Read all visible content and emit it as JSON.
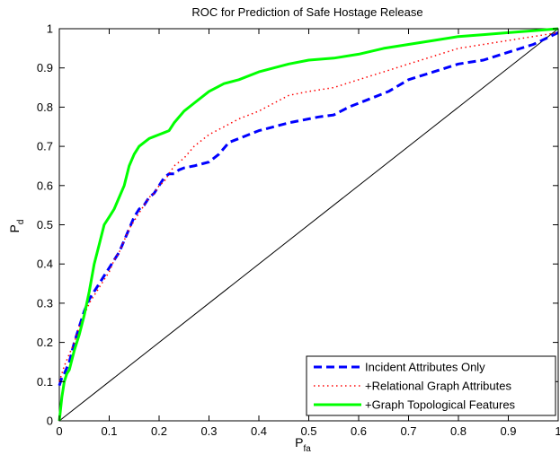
{
  "chart_data": {
    "type": "line",
    "title": "ROC for Prediction of Safe Hostage Release",
    "xlabel": {
      "main": "P",
      "sub": "fa"
    },
    "ylabel": {
      "main": "P",
      "sub": "d"
    },
    "xlim": [
      0,
      1
    ],
    "ylim": [
      0,
      1
    ],
    "xticks": [
      "0",
      "0.1",
      "0.2",
      "0.3",
      "0.4",
      "0.5",
      "0.6",
      "0.7",
      "0.8",
      "0.9",
      "1"
    ],
    "yticks": [
      "0",
      "0.1",
      "0.2",
      "0.3",
      "0.4",
      "0.5",
      "0.6",
      "0.7",
      "0.8",
      "0.9",
      "1"
    ],
    "grid": false,
    "legend_position": "bottom-right",
    "reference_line": {
      "x": [
        0,
        1
      ],
      "y": [
        0,
        1
      ],
      "color": "#000000"
    },
    "series": [
      {
        "name": "Incident Attributes Only",
        "color": "#0000ff",
        "style": "dashed",
        "x": [
          0,
          0.005,
          0.01,
          0.02,
          0.03,
          0.04,
          0.05,
          0.06,
          0.07,
          0.08,
          0.09,
          0.1,
          0.11,
          0.12,
          0.13,
          0.14,
          0.15,
          0.16,
          0.17,
          0.18,
          0.19,
          0.2,
          0.21,
          0.22,
          0.23,
          0.24,
          0.25,
          0.27,
          0.3,
          0.32,
          0.34,
          0.36,
          0.38,
          0.4,
          0.43,
          0.46,
          0.5,
          0.52,
          0.55,
          0.58,
          0.62,
          0.66,
          0.7,
          0.75,
          0.8,
          0.85,
          0.9,
          0.95,
          1.0
        ],
        "y": [
          0.09,
          0.11,
          0.12,
          0.15,
          0.2,
          0.24,
          0.28,
          0.31,
          0.33,
          0.35,
          0.37,
          0.39,
          0.41,
          0.43,
          0.46,
          0.49,
          0.52,
          0.54,
          0.55,
          0.57,
          0.58,
          0.6,
          0.62,
          0.63,
          0.63,
          0.64,
          0.645,
          0.65,
          0.66,
          0.68,
          0.71,
          0.72,
          0.73,
          0.74,
          0.75,
          0.76,
          0.77,
          0.775,
          0.78,
          0.8,
          0.82,
          0.84,
          0.87,
          0.89,
          0.91,
          0.92,
          0.94,
          0.96,
          0.99
        ]
      },
      {
        "name": "+Relational Graph Attributes",
        "color": "#ff0000",
        "style": "dotted",
        "x": [
          0,
          0.005,
          0.01,
          0.02,
          0.03,
          0.04,
          0.05,
          0.06,
          0.07,
          0.08,
          0.09,
          0.1,
          0.11,
          0.12,
          0.13,
          0.14,
          0.15,
          0.16,
          0.17,
          0.18,
          0.19,
          0.2,
          0.21,
          0.22,
          0.23,
          0.25,
          0.27,
          0.3,
          0.33,
          0.36,
          0.4,
          0.43,
          0.46,
          0.5,
          0.55,
          0.6,
          0.65,
          0.7,
          0.75,
          0.8,
          0.85,
          0.9,
          0.95,
          1.0
        ],
        "y": [
          0.1,
          0.12,
          0.14,
          0.17,
          0.2,
          0.24,
          0.27,
          0.3,
          0.32,
          0.34,
          0.36,
          0.38,
          0.41,
          0.43,
          0.46,
          0.49,
          0.51,
          0.53,
          0.55,
          0.57,
          0.58,
          0.6,
          0.61,
          0.63,
          0.65,
          0.67,
          0.7,
          0.73,
          0.75,
          0.77,
          0.79,
          0.81,
          0.83,
          0.84,
          0.85,
          0.87,
          0.89,
          0.91,
          0.93,
          0.95,
          0.96,
          0.97,
          0.98,
          0.99
        ]
      },
      {
        "name": "+Graph Topological Features",
        "color": "#00ff00",
        "style": "solid",
        "x": [
          0,
          0.005,
          0.01,
          0.015,
          0.02,
          0.03,
          0.04,
          0.05,
          0.06,
          0.07,
          0.08,
          0.09,
          0.1,
          0.11,
          0.12,
          0.13,
          0.14,
          0.15,
          0.16,
          0.17,
          0.18,
          0.19,
          0.2,
          0.21,
          0.22,
          0.23,
          0.25,
          0.27,
          0.3,
          0.33,
          0.36,
          0.4,
          0.43,
          0.46,
          0.5,
          0.55,
          0.6,
          0.65,
          0.7,
          0.75,
          0.8,
          0.85,
          0.9,
          0.95,
          1.0
        ],
        "y": [
          0.0,
          0.06,
          0.1,
          0.12,
          0.13,
          0.18,
          0.22,
          0.27,
          0.33,
          0.4,
          0.45,
          0.5,
          0.52,
          0.54,
          0.57,
          0.6,
          0.65,
          0.68,
          0.7,
          0.71,
          0.72,
          0.725,
          0.73,
          0.735,
          0.74,
          0.76,
          0.79,
          0.81,
          0.84,
          0.86,
          0.87,
          0.89,
          0.9,
          0.91,
          0.92,
          0.925,
          0.935,
          0.95,
          0.96,
          0.97,
          0.98,
          0.985,
          0.99,
          0.995,
          1.0
        ]
      }
    ]
  }
}
